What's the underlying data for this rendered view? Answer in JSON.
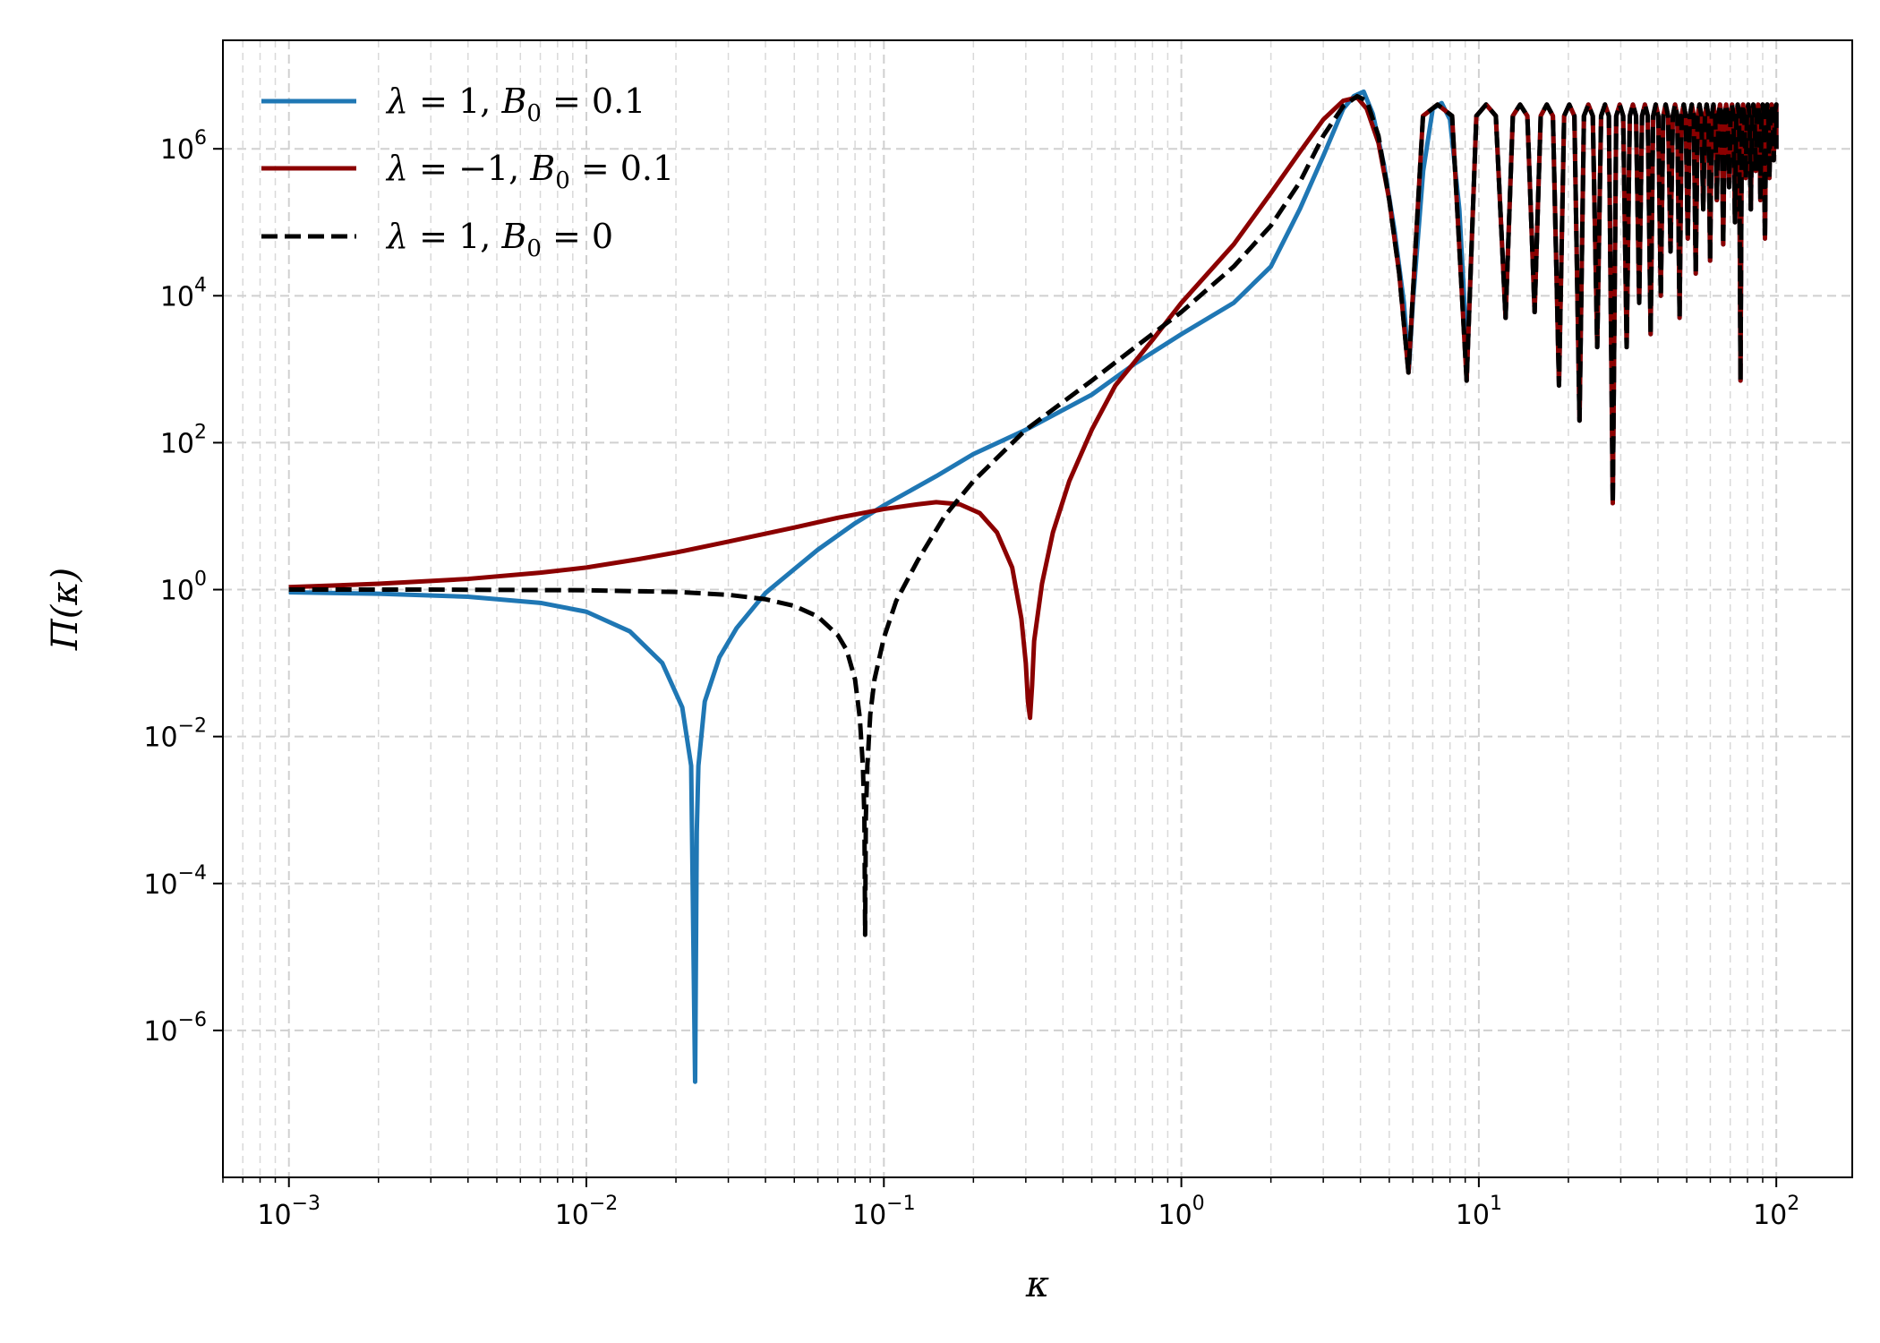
{
  "chart_data": {
    "type": "line",
    "title": "",
    "xlabel": "κ",
    "ylabel": "Π(κ)",
    "xscale": "log",
    "yscale": "log",
    "xlim": [
      0.0006,
      180
    ],
    "ylim": [
      1e-08,
      30000000.0
    ],
    "grid": true,
    "legend_position": "top-left",
    "x_ticks": [
      {
        "value": 0.001,
        "base": "10",
        "exp": "−3"
      },
      {
        "value": 0.01,
        "base": "10",
        "exp": "−2"
      },
      {
        "value": 0.1,
        "base": "10",
        "exp": "−1"
      },
      {
        "value": 1,
        "base": "10",
        "exp": "0"
      },
      {
        "value": 10,
        "base": "10",
        "exp": "1"
      },
      {
        "value": 100,
        "base": "10",
        "exp": "2"
      }
    ],
    "y_ticks": [
      {
        "value": 1e-06,
        "base": "10",
        "exp": "−6"
      },
      {
        "value": 0.0001,
        "base": "10",
        "exp": "−4"
      },
      {
        "value": 0.01,
        "base": "10",
        "exp": "−2"
      },
      {
        "value": 1,
        "base": "10",
        "exp": "0"
      },
      {
        "value": 100,
        "base": "10",
        "exp": "2"
      },
      {
        "value": 10000.0,
        "base": "10",
        "exp": "4"
      },
      {
        "value": 1000000.0,
        "base": "10",
        "exp": "6"
      }
    ],
    "series": [
      {
        "name": "λ = 1,  B₀ = 0.1",
        "legend": {
          "lambda": "λ",
          "lambda_val": "= 1,",
          "b": "B",
          "sub": "0",
          "b_val": "= 0.1"
        },
        "color": "#1f77b4",
        "dash": "solid",
        "x": [
          0.001,
          0.002,
          0.004,
          0.007,
          0.01,
          0.014,
          0.018,
          0.021,
          0.0225,
          0.0232,
          0.0235,
          0.0238,
          0.025,
          0.028,
          0.032,
          0.04,
          0.06,
          0.08,
          0.1,
          0.15,
          0.2,
          0.3,
          0.5,
          0.7,
          1.0,
          1.5,
          2.0,
          2.5,
          3.0,
          3.5,
          3.8,
          4.1,
          4.4,
          4.8,
          5.2,
          5.6,
          5.82,
          6.0,
          6.5,
          7.0,
          7.5,
          8.0,
          8.6,
          9.0
        ],
        "y": [
          0.92,
          0.88,
          0.8,
          0.66,
          0.5,
          0.27,
          0.1,
          0.025,
          0.004,
          2e-07,
          0.0005,
          0.004,
          0.03,
          0.12,
          0.3,
          0.9,
          3.5,
          8,
          14,
          35,
          70,
          150,
          450,
          1200,
          3000,
          8000,
          25000,
          150000,
          800000,
          3500000,
          5200000,
          6000000,
          3000000,
          600000,
          80000,
          8000,
          1000,
          8000,
          500000,
          3500000,
          4200000,
          2500000,
          150000,
          5000
        ]
      },
      {
        "name": "λ = −1,  B₀ = 0.1",
        "legend": {
          "lambda": "λ",
          "lambda_val": "= −1,",
          "b": "B",
          "sub": "0",
          "b_val": "= 0.1"
        },
        "color": "#8b0000",
        "dash": "solid",
        "x": [
          0.001,
          0.002,
          0.004,
          0.007,
          0.01,
          0.015,
          0.02,
          0.03,
          0.05,
          0.07,
          0.1,
          0.13,
          0.15,
          0.18,
          0.21,
          0.24,
          0.27,
          0.29,
          0.3,
          0.305,
          0.31,
          0.315,
          0.32,
          0.34,
          0.37,
          0.42,
          0.5,
          0.6,
          0.8,
          1.0,
          1.5,
          2.0,
          2.5,
          3.0,
          3.5,
          3.9,
          4.2,
          4.6,
          5.0,
          5.4,
          5.8
        ],
        "y": [
          1.08,
          1.2,
          1.4,
          1.7,
          2.0,
          2.6,
          3.2,
          4.5,
          7,
          9.5,
          12.5,
          14.5,
          15.5,
          14.5,
          11,
          6,
          2,
          0.4,
          0.1,
          0.03,
          0.018,
          0.05,
          0.2,
          1.2,
          6,
          30,
          150,
          600,
          2500,
          8000,
          50000,
          250000,
          900000,
          2500000,
          4500000,
          5000000,
          3500000,
          1200000,
          200000,
          20000,
          900
        ]
      },
      {
        "name": "λ = 1,  B₀ = 0",
        "legend": {
          "lambda": "λ",
          "lambda_val": "= 1,",
          "b": "B",
          "sub": "0",
          "b_val": "= 0"
        },
        "color": "#000000",
        "dash": "dashed",
        "x": [
          0.001,
          0.003,
          0.01,
          0.02,
          0.03,
          0.04,
          0.05,
          0.06,
          0.07,
          0.075,
          0.08,
          0.083,
          0.085,
          0.086,
          0.0865,
          0.087,
          0.088,
          0.09,
          0.093,
          0.1,
          0.11,
          0.13,
          0.16,
          0.2,
          0.3,
          0.5,
          0.7,
          1.0,
          1.5,
          2.0,
          2.5,
          3.0,
          3.5,
          3.9,
          4.2,
          4.6,
          5.0,
          5.4,
          5.8
        ],
        "y": [
          1.0,
          1.0,
          0.98,
          0.93,
          0.85,
          0.74,
          0.6,
          0.43,
          0.24,
          0.15,
          0.06,
          0.018,
          0.004,
          0.0008,
          2e-05,
          0.0008,
          0.004,
          0.02,
          0.06,
          0.22,
          0.7,
          2.5,
          10,
          30,
          150,
          700,
          2000,
          6000,
          25000,
          90000,
          350000,
          1500000,
          3800000,
          5200000,
          4500000,
          1500000,
          200000,
          20000,
          900
        ]
      }
    ],
    "oscillation": {
      "x_start": 5.8,
      "x_end": 100,
      "envelope": 4000000,
      "dip_minima": [
        {
          "x": 5.8,
          "y": 900
        },
        {
          "x": 9.1,
          "y": 700
        },
        {
          "x": 12.3,
          "y": 5000
        },
        {
          "x": 15.4,
          "y": 6000
        },
        {
          "x": 18.6,
          "y": 600
        },
        {
          "x": 21.8,
          "y": 200
        },
        {
          "x": 25.0,
          "y": 2000
        },
        {
          "x": 28.2,
          "y": 15
        },
        {
          "x": 31.4,
          "y": 2000
        },
        {
          "x": 34.6,
          "y": 8000
        },
        {
          "x": 37.8,
          "y": 3000
        },
        {
          "x": 40.9,
          "y": 10000
        },
        {
          "x": 44.1,
          "y": 40000
        },
        {
          "x": 47.3,
          "y": 5000
        },
        {
          "x": 50.4,
          "y": 60000
        },
        {
          "x": 53.6,
          "y": 20000
        },
        {
          "x": 56.8,
          "y": 150000
        },
        {
          "x": 59.9,
          "y": 30000
        },
        {
          "x": 63.1,
          "y": 200000
        },
        {
          "x": 66.3,
          "y": 50000
        },
        {
          "x": 69.4,
          "y": 300000
        },
        {
          "x": 72.6,
          "y": 100000
        },
        {
          "x": 75.8,
          "y": 700
        },
        {
          "x": 78.9,
          "y": 400000
        },
        {
          "x": 82.1,
          "y": 150000
        },
        {
          "x": 85.3,
          "y": 500000
        },
        {
          "x": 88.4,
          "y": 200000
        },
        {
          "x": 91.6,
          "y": 60000
        },
        {
          "x": 94.8,
          "y": 400000
        },
        {
          "x": 98.0,
          "y": 700000
        }
      ]
    }
  }
}
